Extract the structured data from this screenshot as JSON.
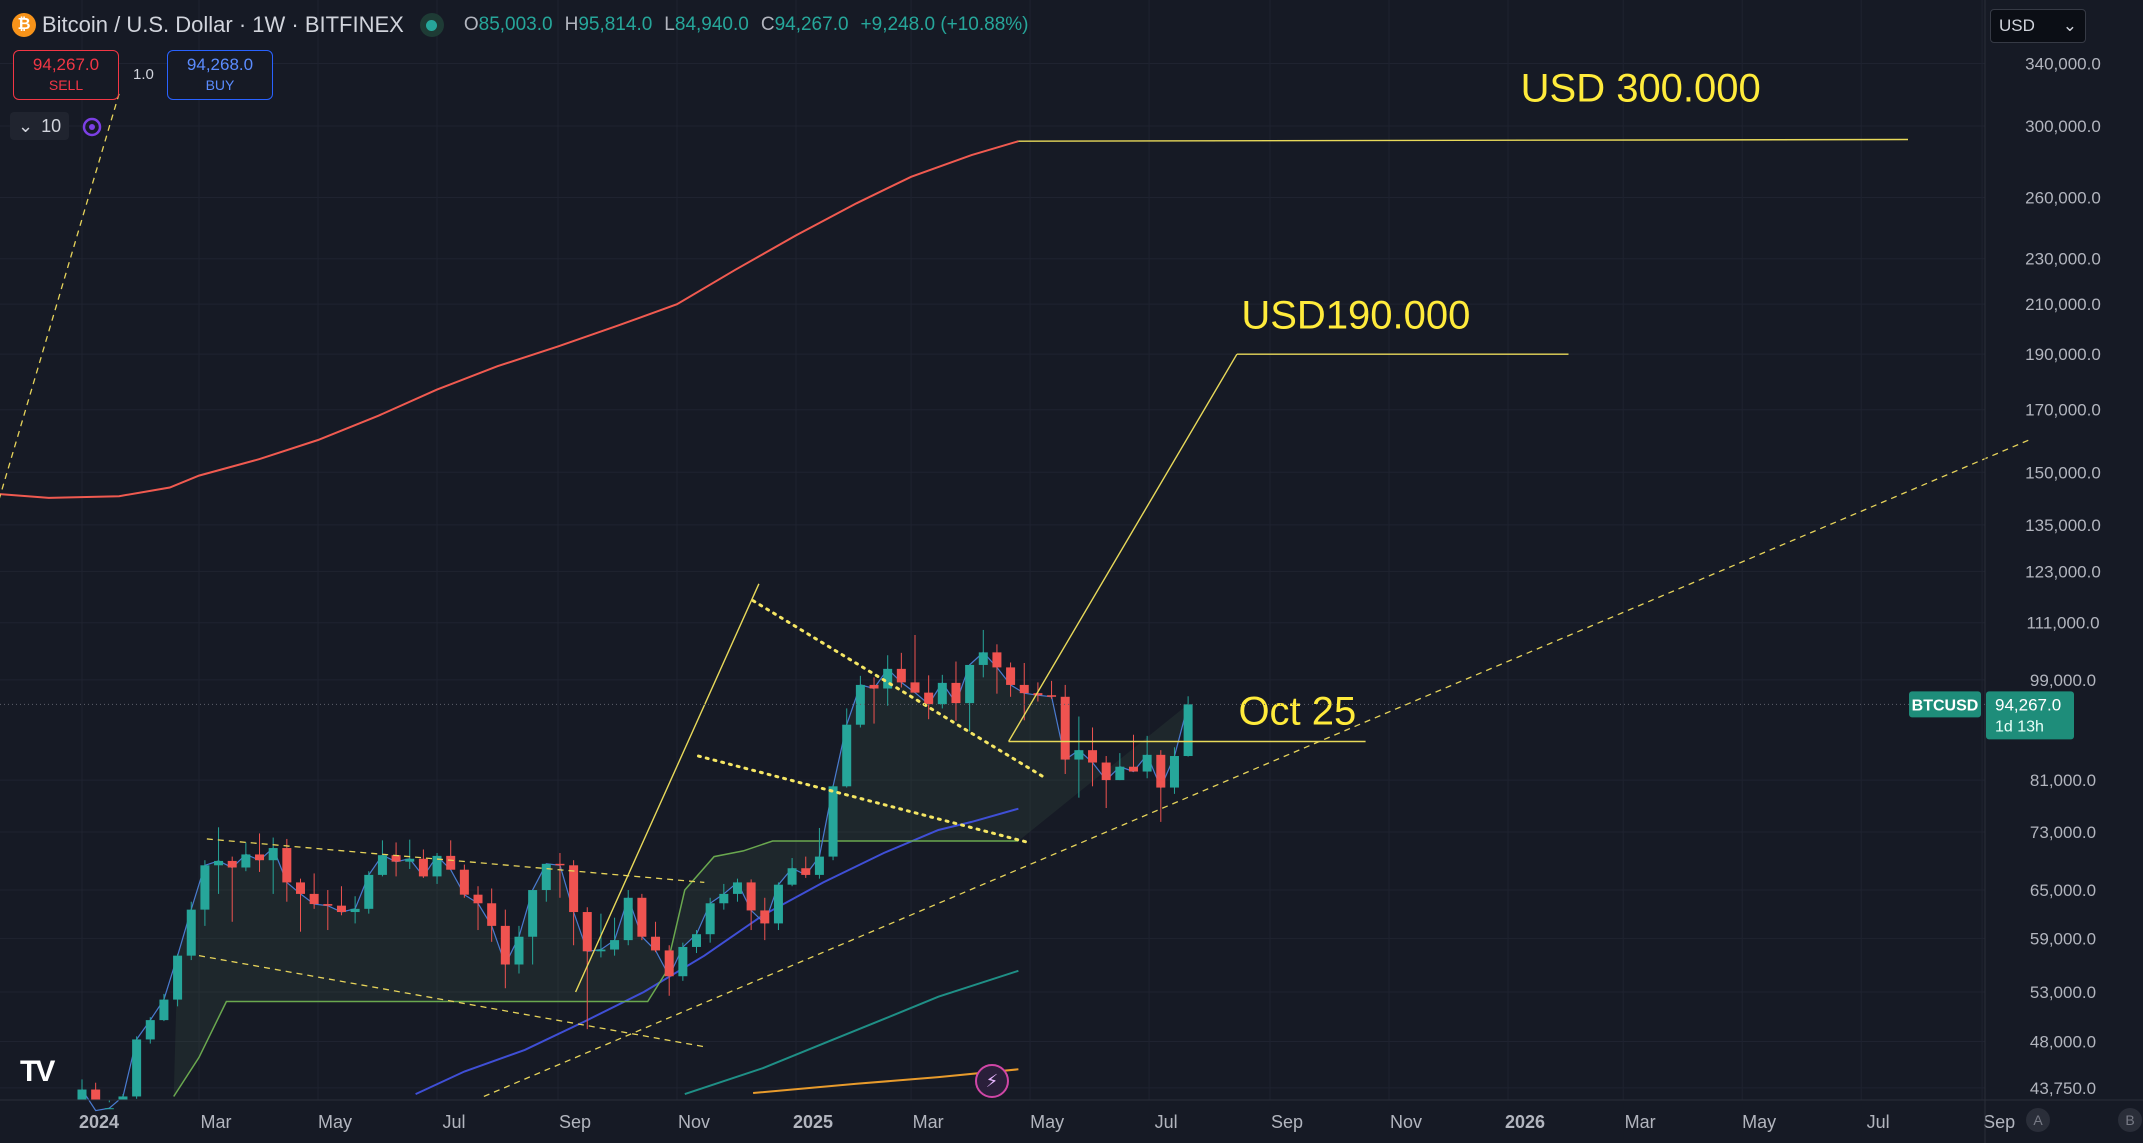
{
  "header": {
    "symbol_badge": "₿",
    "title": "Bitcoin / U.S. Dollar · 1W · BITFINEX",
    "ohlc": [
      {
        "k": "O",
        "v": "85,003.0"
      },
      {
        "k": "H",
        "v": "95,814.0"
      },
      {
        "k": "L",
        "v": "84,940.0"
      },
      {
        "k": "C",
        "v": "94,267.0"
      }
    ],
    "change": "+9,248.0 (+10.88%)"
  },
  "trade": {
    "sell_price": "94,267.0",
    "sell_label": "SELL",
    "buy_price": "94,268.0",
    "buy_label": "BUY",
    "spread": "1.0",
    "qty_icon": "⌄",
    "quantity": "10"
  },
  "currency": {
    "value": "USD",
    "chevron": "⌄"
  },
  "logo": "TV",
  "flash_icon": "⚡",
  "corner_buttons": [
    "A",
    "B"
  ],
  "colors": {
    "background": "#161a25",
    "up": "#26a69a",
    "down": "#ef5350",
    "annotation": "#ffeb3b",
    "ma_red": "#f05a50",
    "ma_blue": "#3f4fd6",
    "ma_teal": "#1f8f86",
    "ma_orange": "#e89b2c",
    "label_bg": "#1e8d7a"
  },
  "chart_data": {
    "type": "candlestick",
    "symbol": "BTCUSD",
    "timeframe": "1W",
    "y_scale": "log",
    "ylim": [
      43000,
      355000
    ],
    "y_ticks": [
      {
        "v": 340000,
        "label": "340,000.0"
      },
      {
        "v": 300000,
        "label": "300,000.0"
      },
      {
        "v": 260000,
        "label": "260,000.0"
      },
      {
        "v": 230000,
        "label": "230,000.0"
      },
      {
        "v": 210000,
        "label": "210,000.0"
      },
      {
        "v": 190000,
        "label": "190,000.0"
      },
      {
        "v": 170000,
        "label": "170,000.0"
      },
      {
        "v": 150000,
        "label": "150,000.0"
      },
      {
        "v": 135000,
        "label": "135,000.0"
      },
      {
        "v": 123000,
        "label": "123,000.0"
      },
      {
        "v": 111000,
        "label": "111,000.0"
      },
      {
        "v": 99000,
        "label": "99,000.0"
      },
      {
        "v": 81000,
        "label": "81,000.0"
      },
      {
        "v": 73000,
        "label": "73,000.0"
      },
      {
        "v": 65000,
        "label": "65,000.0"
      },
      {
        "v": 59000,
        "label": "59,000.0"
      },
      {
        "v": 53000,
        "label": "53,000.0"
      },
      {
        "v": 48000,
        "label": "48,000.0"
      },
      {
        "v": 43750,
        "label": "43,750.0"
      }
    ],
    "x_ticks": [
      {
        "date": "2024-01-01",
        "label": "2024",
        "bold": true
      },
      {
        "date": "2024-03-01",
        "label": "Mar"
      },
      {
        "date": "2024-05-01",
        "label": "May"
      },
      {
        "date": "2024-07-01",
        "label": "Jul"
      },
      {
        "date": "2024-09-01",
        "label": "Sep"
      },
      {
        "date": "2024-11-01",
        "label": "Nov"
      },
      {
        "date": "2025-01-01",
        "label": "2025",
        "bold": true
      },
      {
        "date": "2025-03-01",
        "label": "Mar"
      },
      {
        "date": "2025-05-01",
        "label": "May"
      },
      {
        "date": "2025-07-01",
        "label": "Jul"
      },
      {
        "date": "2025-09-01",
        "label": "Sep"
      },
      {
        "date": "2025-11-01",
        "label": "Nov"
      },
      {
        "date": "2026-01-01",
        "label": "2026",
        "bold": true
      },
      {
        "date": "2026-03-01",
        "label": "Mar"
      },
      {
        "date": "2026-05-01",
        "label": "May"
      },
      {
        "date": "2026-07-01",
        "label": "Jul"
      },
      {
        "date": "2026-09-01",
        "label": "Sep"
      }
    ],
    "candle_start_date": "2024-01-01",
    "candles": [
      [
        42500,
        44500,
        41800,
        43600
      ],
      [
        43600,
        44200,
        38500,
        41800
      ],
      [
        41800,
        42500,
        39500,
        42000
      ],
      [
        42000,
        43200,
        41600,
        43000
      ],
      [
        43000,
        48500,
        42800,
        48200
      ],
      [
        48200,
        50400,
        47800,
        50100
      ],
      [
        50100,
        52800,
        50000,
        52200
      ],
      [
        52200,
        57200,
        51500,
        57000
      ],
      [
        57000,
        63500,
        56500,
        62500
      ],
      [
        62500,
        69000,
        60500,
        68300
      ],
      [
        68300,
        73700,
        64500,
        68900
      ],
      [
        68900,
        69500,
        61000,
        68000
      ],
      [
        68000,
        71500,
        67500,
        69800
      ],
      [
        69800,
        72800,
        67400,
        69000
      ],
      [
        69000,
        72200,
        64500,
        70700
      ],
      [
        70700,
        72000,
        63500,
        66000
      ],
      [
        66000,
        66500,
        59800,
        64500
      ],
      [
        64500,
        67200,
        62600,
        63200
      ],
      [
        63200,
        65000,
        60000,
        63000
      ],
      [
        63000,
        65500,
        61800,
        62200
      ],
      [
        62200,
        64200,
        60800,
        62600
      ],
      [
        62600,
        67500,
        62000,
        67000
      ],
      [
        67000,
        71800,
        66800,
        69700
      ],
      [
        69700,
        71500,
        66800,
        68800
      ],
      [
        68800,
        71900,
        67800,
        69200
      ],
      [
        69200,
        70500,
        66600,
        66800
      ],
      [
        66800,
        70000,
        65800,
        69600
      ],
      [
        69600,
        71800,
        68000,
        67700
      ],
      [
        67700,
        68400,
        64000,
        64400
      ],
      [
        64400,
        65500,
        60000,
        63300
      ],
      [
        63300,
        65200,
        58600,
        60500
      ],
      [
        60500,
        62500,
        53400,
        56000
      ],
      [
        56000,
        60500,
        55000,
        59200
      ],
      [
        59200,
        65000,
        56000,
        65000
      ],
      [
        65000,
        68500,
        63500,
        68500
      ],
      [
        68500,
        70000,
        64000,
        68300
      ],
      [
        68300,
        69000,
        58200,
        62200
      ],
      [
        62200,
        62800,
        49200,
        57500
      ],
      [
        57500,
        62000,
        56800,
        57700
      ],
      [
        57700,
        61500,
        57000,
        58800
      ],
      [
        58800,
        65000,
        58200,
        64000
      ],
      [
        64000,
        64500,
        58800,
        59200
      ],
      [
        59200,
        61000,
        57400,
        57600
      ],
      [
        57600,
        58200,
        52600,
        54700
      ],
      [
        54700,
        58500,
        54200,
        58000
      ],
      [
        58000,
        60000,
        57300,
        59500
      ],
      [
        59500,
        64000,
        58500,
        63300
      ],
      [
        63300,
        65800,
        62500,
        64500
      ],
      [
        64500,
        66500,
        63500,
        66000
      ],
      [
        66000,
        66400,
        60000,
        62400
      ],
      [
        62400,
        64000,
        58800,
        60800
      ],
      [
        60800,
        66000,
        60000,
        65700
      ],
      [
        65700,
        69300,
        65500,
        67900
      ],
      [
        67900,
        69500,
        66600,
        67000
      ],
      [
        67000,
        73600,
        66500,
        69500
      ],
      [
        69500,
        80200,
        69000,
        80000
      ],
      [
        80000,
        93500,
        79800,
        90500
      ],
      [
        90500,
        99800,
        90000,
        98000
      ],
      [
        98000,
        99500,
        90700,
        97300
      ],
      [
        97300,
        104000,
        94000,
        101200
      ],
      [
        101200,
        104500,
        97500,
        98500
      ],
      [
        98500,
        108300,
        97000,
        96500
      ],
      [
        96500,
        99900,
        91500,
        94300
      ],
      [
        94300,
        100000,
        93500,
        98400
      ],
      [
        98400,
        102700,
        91200,
        94500
      ],
      [
        94500,
        101500,
        89300,
        102000
      ],
      [
        102000,
        109400,
        99500,
        104600
      ],
      [
        104600,
        106300,
        96300,
        101500
      ],
      [
        101500,
        102500,
        95700,
        98000
      ],
      [
        98000,
        102400,
        91300,
        96400
      ],
      [
        96400,
        98500,
        94800,
        96000
      ],
      [
        96000,
        98800,
        95300,
        95700
      ],
      [
        95700,
        98000,
        82000,
        84400
      ],
      [
        84400,
        92000,
        78200,
        86000
      ],
      [
        86000,
        90000,
        80000,
        83900
      ],
      [
        83900,
        85000,
        76600,
        81000
      ],
      [
        81000,
        85500,
        81000,
        83200
      ],
      [
        83200,
        88700,
        82600,
        82400
      ],
      [
        82400,
        88500,
        81300,
        85200
      ],
      [
        85200,
        86000,
        74500,
        79800
      ],
      [
        79800,
        86500,
        78800,
        85000
      ],
      [
        85000,
        95800,
        84900,
        94267
      ]
    ],
    "series": [
      {
        "name": "MA-red",
        "color": "#f05a50",
        "points": [
          [
            "2023-10-15",
            147000
          ],
          [
            "2023-11-10",
            144000
          ],
          [
            "2023-12-15",
            142500
          ],
          [
            "2024-01-20",
            143000
          ],
          [
            "2024-02-15",
            145500
          ],
          [
            "2024-03-01",
            149000
          ],
          [
            "2024-04-01",
            154000
          ],
          [
            "2024-05-01",
            160000
          ],
          [
            "2024-06-01",
            168000
          ],
          [
            "2024-07-01",
            177000
          ],
          [
            "2024-08-01",
            185500
          ],
          [
            "2024-09-01",
            193000
          ],
          [
            "2024-10-01",
            201000
          ],
          [
            "2024-11-01",
            210000
          ],
          [
            "2024-12-01",
            225000
          ],
          [
            "2025-01-01",
            241000
          ],
          [
            "2025-02-01",
            257000
          ],
          [
            "2025-03-01",
            271000
          ],
          [
            "2025-04-01",
            283000
          ],
          [
            "2025-04-25",
            291000
          ]
        ]
      },
      {
        "name": "MA-blue",
        "color": "#3f4fd6",
        "points": [
          [
            "2024-06-20",
            43200
          ],
          [
            "2024-07-15",
            45200
          ],
          [
            "2024-08-15",
            47200
          ],
          [
            "2024-09-15",
            50000
          ],
          [
            "2024-10-15",
            53000
          ],
          [
            "2024-11-15",
            57000
          ],
          [
            "2024-12-15",
            61800
          ],
          [
            "2025-01-15",
            66000
          ],
          [
            "2025-02-15",
            70000
          ],
          [
            "2025-03-15",
            73300
          ],
          [
            "2025-04-01",
            74500
          ],
          [
            "2025-04-25",
            76500
          ]
        ]
      },
      {
        "name": "MA-teal",
        "color": "#1f8f86",
        "points": [
          [
            "2024-11-05",
            43200
          ],
          [
            "2024-12-15",
            45500
          ],
          [
            "2025-01-15",
            47800
          ],
          [
            "2025-02-15",
            50200
          ],
          [
            "2025-03-15",
            52500
          ],
          [
            "2025-04-25",
            55300
          ]
        ]
      },
      {
        "name": "MA-orange",
        "color": "#e89b2c",
        "points": [
          [
            "2024-12-10",
            43300
          ],
          [
            "2025-02-01",
            44100
          ],
          [
            "2025-03-15",
            44700
          ],
          [
            "2025-04-25",
            45400
          ]
        ]
      },
      {
        "name": "Support-band",
        "color": "#6aa84f",
        "points": [
          [
            "2024-02-17",
            43000
          ],
          [
            "2024-03-01",
            46500
          ],
          [
            "2024-03-15",
            52000
          ],
          [
            "2024-05-01",
            52000
          ],
          [
            "2024-07-01",
            52000
          ],
          [
            "2024-09-01",
            52000
          ],
          [
            "2024-10-17",
            52000
          ],
          [
            "2024-10-26",
            55000
          ],
          [
            "2024-11-05",
            65000
          ],
          [
            "2024-11-20",
            69500
          ],
          [
            "2024-12-05",
            70300
          ],
          [
            "2024-12-20",
            71700
          ],
          [
            "2025-01-15",
            71700
          ],
          [
            "2025-02-15",
            71700
          ],
          [
            "2025-03-15",
            71700
          ],
          [
            "2025-04-25",
            71700
          ]
        ]
      }
    ],
    "trend_lines": [
      {
        "p1": [
          "2023-10-20",
          95000
        ],
        "p2": [
          "2024-01-20",
          320000
        ]
      },
      {
        "p1": [
          "2024-03-05",
          72000
        ],
        "p2": [
          "2024-11-15",
          66000
        ]
      },
      {
        "p1": [
          "2024-03-01",
          57000
        ],
        "p2": [
          "2024-11-15",
          47500
        ]
      },
      {
        "p1": [
          "2024-07-25",
          43000
        ],
        "p2": [
          "2026-09-25",
          160000
        ]
      }
    ],
    "wedge_lines": [
      {
        "p1": [
          "2024-12-10",
          116000
        ],
        "p2": [
          "2025-05-08",
          81500
        ]
      },
      {
        "p1": [
          "2024-11-12",
          85000
        ],
        "p2": [
          "2025-04-30",
          71500
        ]
      }
    ],
    "projections": [
      {
        "points": [
          [
            "2025-04-20",
            87500
          ],
          [
            "2025-08-15",
            190000
          ]
        ]
      },
      {
        "points": [
          [
            "2025-04-20",
            87500
          ],
          [
            "2025-10-20",
            87500
          ]
        ]
      },
      {
        "points": [
          [
            "2025-08-15",
            190000
          ],
          [
            "2026-02-01",
            190000
          ]
        ]
      },
      {
        "points": [
          [
            "2025-04-25",
            291000
          ],
          [
            "2026-07-25",
            292000
          ]
        ]
      },
      {
        "points": [
          [
            "2024-09-10",
            53000
          ],
          [
            "2024-12-13",
            120000
          ]
        ]
      }
    ],
    "annotations": [
      {
        "text": "USD 300.000",
        "x": "2026-03-10",
        "y": 315000
      },
      {
        "text": "USD190.000",
        "x": "2025-10-15",
        "y": 200000
      },
      {
        "text": "Oct 25",
        "x": "2025-09-15",
        "y": 90500
      }
    ],
    "last_price": {
      "symbol": "BTCUSD",
      "price": "94,267.0",
      "countdown": "1d 13h",
      "value": 94267
    }
  }
}
